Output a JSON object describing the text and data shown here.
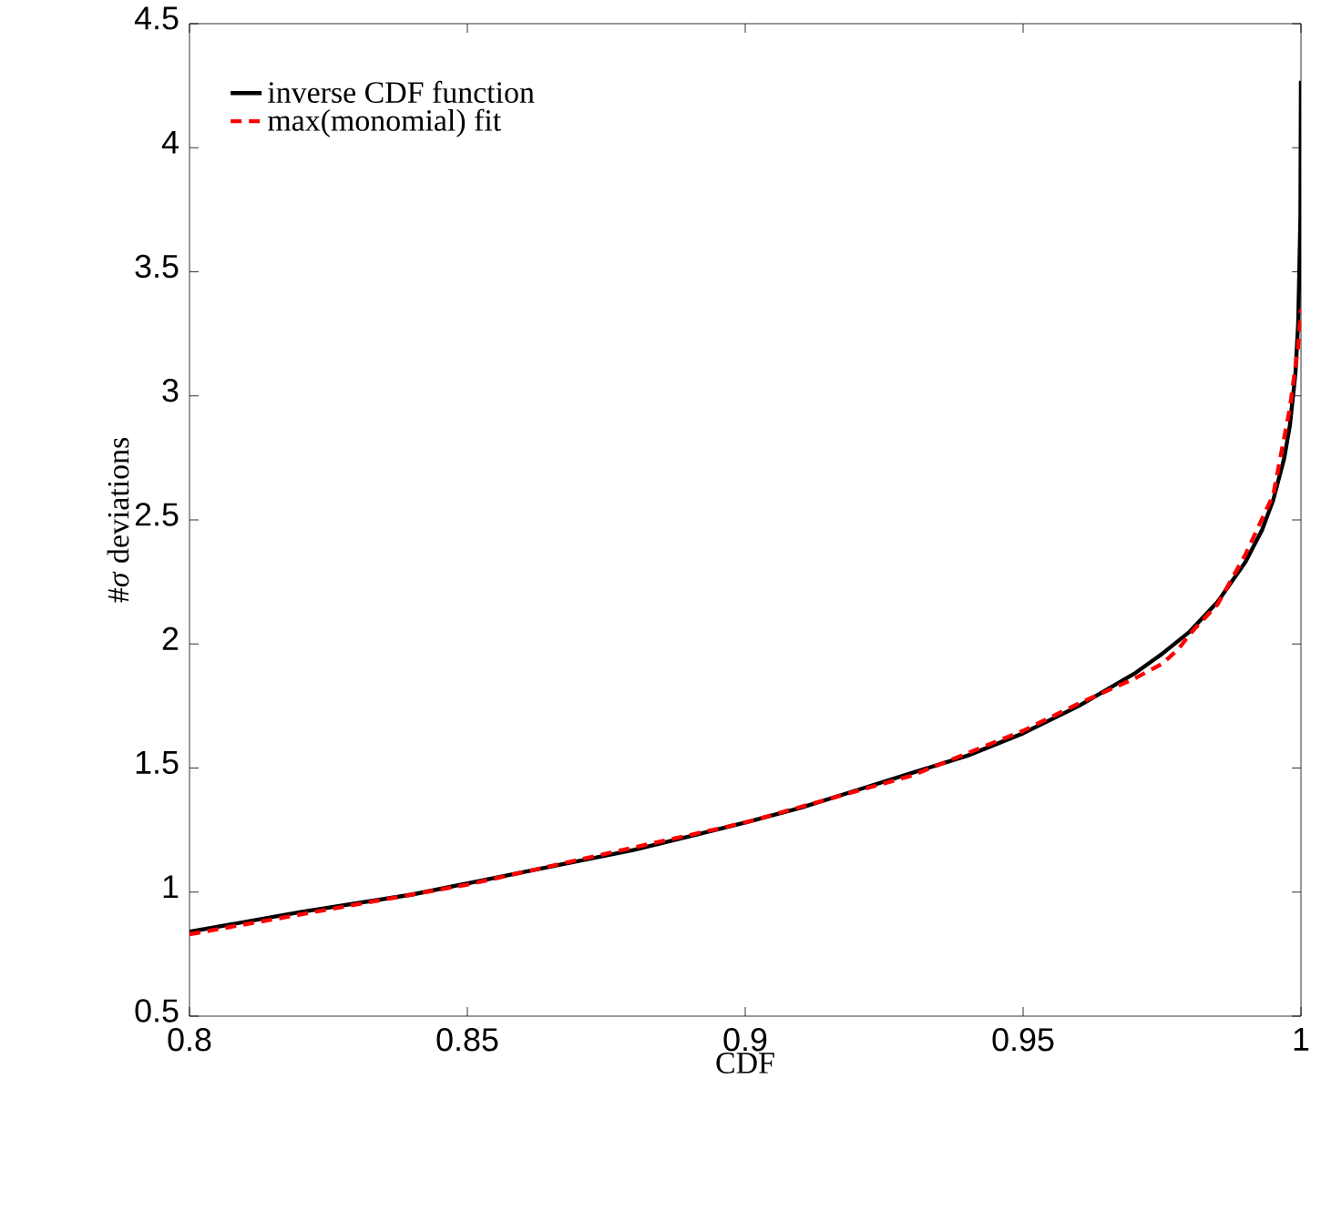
{
  "chart_data": {
    "type": "line",
    "xlabel": "CDF",
    "ylabel": "#*σ* deviations",
    "xlim": [
      0.8,
      1
    ],
    "ylim": [
      0.5,
      4.5
    ],
    "xticks": [
      0.8,
      0.85,
      0.9,
      0.95,
      1
    ],
    "yticks": [
      0.5,
      1,
      1.5,
      2,
      2.5,
      3,
      3.5,
      4,
      4.5
    ],
    "grid": false,
    "legend": "top left",
    "marker": "none",
    "series": [
      {
        "name": "inverse CDF function",
        "color": "#000000",
        "line_style": "solid",
        "x": [
          0.8,
          0.82,
          0.84,
          0.86,
          0.88,
          0.9,
          0.91,
          0.92,
          0.93,
          0.94,
          0.95,
          0.96,
          0.97,
          0.975,
          0.98,
          0.985,
          0.99,
          0.993,
          0.995,
          0.997,
          0.998,
          0.999,
          0.9995,
          0.9999,
          0.99999
        ],
        "values": [
          0.84,
          0.92,
          0.99,
          1.08,
          1.17,
          1.28,
          1.34,
          1.41,
          1.48,
          1.55,
          1.64,
          1.75,
          1.88,
          1.96,
          2.05,
          2.17,
          2.33,
          2.46,
          2.58,
          2.75,
          2.88,
          3.09,
          3.29,
          3.72,
          4.27
        ]
      },
      {
        "name": "max(monomial) fit",
        "color": "#ff0000",
        "line_style": "dashed",
        "x": [
          0.8,
          0.85,
          0.9,
          0.93,
          0.95,
          0.96,
          0.97,
          0.975,
          0.978,
          0.98,
          0.985,
          0.99,
          0.995,
          0.998,
          0.9995,
          1.0
        ],
        "values": [
          0.83,
          1.03,
          1.28,
          1.47,
          1.65,
          1.76,
          1.86,
          1.92,
          1.98,
          2.04,
          2.16,
          2.36,
          2.6,
          2.95,
          3.2,
          3.35
        ]
      }
    ]
  }
}
